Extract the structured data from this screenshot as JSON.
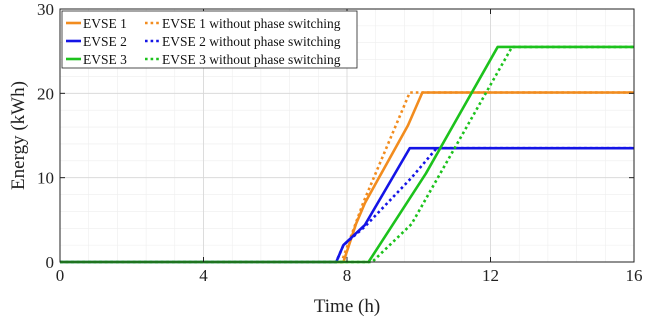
{
  "chart_data": {
    "type": "line",
    "xlabel": "Time (h)",
    "ylabel": "Energy (kWh)",
    "xlim": [
      0,
      16
    ],
    "ylim": [
      0,
      30
    ],
    "xticks": [
      "0",
      "4",
      "8",
      "12",
      "16"
    ],
    "yticks": [
      "0",
      "10",
      "20",
      "30"
    ],
    "grid": true,
    "legend_position": "top-left",
    "series": [
      {
        "name": "EVSE 1",
        "color": "#F28C1E",
        "dash": "solid",
        "x": [
          0,
          7.9,
          8.25,
          8.5,
          9.7,
          10.1,
          16
        ],
        "y": [
          0,
          0,
          4.5,
          7.0,
          16.2,
          20.1,
          20.1
        ]
      },
      {
        "name": "EVSE 1 without phase switching",
        "color": "#F28C1E",
        "dash": "dotted",
        "x": [
          0,
          7.85,
          8.45,
          9.75,
          16
        ],
        "y": [
          0,
          0,
          7.0,
          20.1,
          20.1
        ]
      },
      {
        "name": "EVSE 2",
        "color": "#1414E6",
        "dash": "solid",
        "x": [
          0,
          7.7,
          7.9,
          8.5,
          9.75,
          16
        ],
        "y": [
          0,
          0,
          2.0,
          4.4,
          13.5,
          13.5
        ]
      },
      {
        "name": "EVSE 2 without phase switching",
        "color": "#1414E6",
        "dash": "dotted",
        "x": [
          0,
          7.7,
          7.9,
          8.5,
          9.8,
          10.5,
          16
        ],
        "y": [
          0,
          0,
          2.0,
          4.2,
          10.0,
          13.5,
          13.5
        ]
      },
      {
        "name": "EVSE 3",
        "color": "#1CC21C",
        "dash": "solid",
        "x": [
          0,
          8.6,
          10.2,
          12.2,
          16
        ],
        "y": [
          0,
          0,
          10.5,
          25.5,
          25.5
        ]
      },
      {
        "name": "EVSE 3 without phase switching",
        "color": "#1CC21C",
        "dash": "dotted",
        "x": [
          0,
          8.7,
          9.8,
          12.6,
          16
        ],
        "y": [
          0,
          0,
          4.5,
          25.5,
          25.5
        ]
      }
    ]
  }
}
